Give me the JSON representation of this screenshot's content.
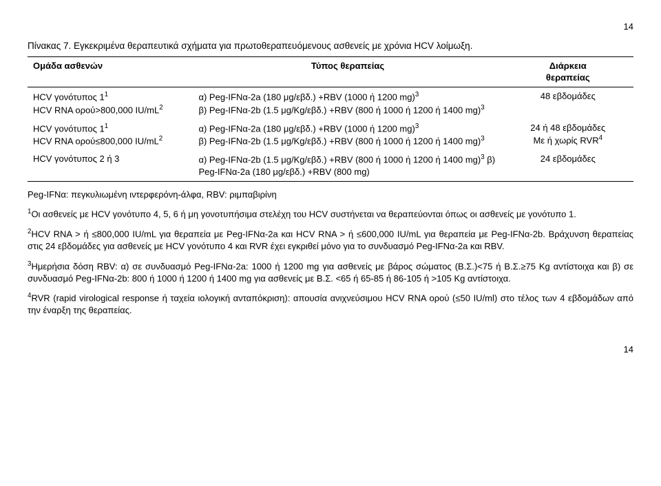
{
  "page_top_num": "14",
  "page_bottom_num": "14",
  "title": "Πίνακας 7. Εγκεκριμένα θεραπευτικά σχήματα για πρωτοθεραπευόμενους ασθενείς με χρόνια HCV λοίμωξη.",
  "header": {
    "c1": "Ομάδα ασθενών",
    "c2": "Τύπος θεραπείας",
    "c3_line1": "Διάρκεια",
    "c3_line2": "θεραπείας"
  },
  "rows": [
    {
      "c1_line1": "HCV γονότυπος 1",
      "c1_sup1": "1",
      "c1_line2": "HCV RNA ορού>800,000 IU/mL",
      "c1_sup2": "2",
      "c2_a": "α) Peg-IFNα-2a (180 μg/εβδ.)  +RBV (1000 ή 1200 mg)",
      "c2_a_sup": "3",
      "c2_b": "β) Peg-IFNα-2b (1.5 μg/Kg/εβδ.) +RBV (800 ή 1000 ή 1200 ή 1400 mg)",
      "c2_b_sup": "3",
      "c3_line1": "48 εβδομάδες",
      "c3_line2": ""
    },
    {
      "c1_line1": "HCV γονότυπος 1",
      "c1_sup1": "1",
      "c1_line2": "HCV RNA ορού≤800,000 IU/mL",
      "c1_sup2": "2",
      "c2_a": "α) Peg-IFNα-2a (180 μg/εβδ.)  +RBV (1000 ή 1200 mg)",
      "c2_a_sup": "3",
      "c2_b": "β) Peg-IFNα-2b (1.5 μg/Kg/εβδ.) +RBV (800 ή 1000 ή 1200 ή 1400 mg)",
      "c2_b_sup": "3",
      "c3_line1": "24 ή 48 εβδομάδες",
      "c3_line2_pre": "Με ή χωρίς RVR",
      "c3_line2_sup": "4"
    },
    {
      "c1_line1": "HCV γονότυπος 2 ή 3",
      "c1_sup1": "",
      "c1_line2": "",
      "c1_sup2": "",
      "c2_third_a": "α) Peg-IFNα-2b (1.5 μg/Kg/εβδ.) +RBV (800 ή 1000 ή 1200 ή 1400 mg)",
      "c2_third_a_sup": "3",
      "c2_third_b": " β) Peg-IFNα-2a (180 μg/εβδ.) +RBV (800 mg)",
      "c3_line1": "24 εβδομάδες",
      "c3_line2": ""
    }
  ],
  "para1": "Peg-IFNα: πεγκυλιωμένη ιντερφερόνη-άλφα, RBV: ριμπαβιρίνη",
  "para2_sup": "1",
  "para2": "Οι ασθενείς με HCV γονότυπο 4, 5, 6 ή μη γονοτυπήσιμα στελέχη του  HCV συστήνεται να θεραπεύονται όπως οι ασθενείς με γονότυπο 1.",
  "para3_sup": "2",
  "para3": "HCV RNA > ή ≤800,000 IU/mL για θεραπεία με Peg-IFNα-2a και HCV RNA > ή ≤600,000 IU/mL για θεραπεία με Peg-IFNα-2b. Βράχυνση θεραπείας στις 24 εβδομάδες για ασθενείς με HCV γονότυπο 4 και RVR έχει εγκριθεί μόνο για το συνδυασμό Peg-IFNα-2a και RBV.",
  "para4_sup": "3",
  "para4": "Ημερήσια δόση RBV: α) σε συνδυασμό Peg-IFNα-2a: 1000 ή 1200 mg για ασθενείς με βάρος σώματος (Β.Σ.)<75 ή Β.Σ.≥75 Kg αντίστοιχα και β) σε συνδυασμό Peg-IFNα-2b: 800 ή 1000 ή 1200 ή 1400 mg για ασθενείς με Β.Σ. <65 ή 65-85 ή 86-105 ή >105 Kg αντίστοιχα.",
  "para5_sup": "4",
  "para5": "RVR (rapid virological response ή ταχεία ιολογική ανταπόκριση): απουσία ανιχνεύσιμου HCV RNA ορού (≤50 IU/ml) στο τέλος των 4 εβδομάδων από την έναρξη της θεραπείας."
}
